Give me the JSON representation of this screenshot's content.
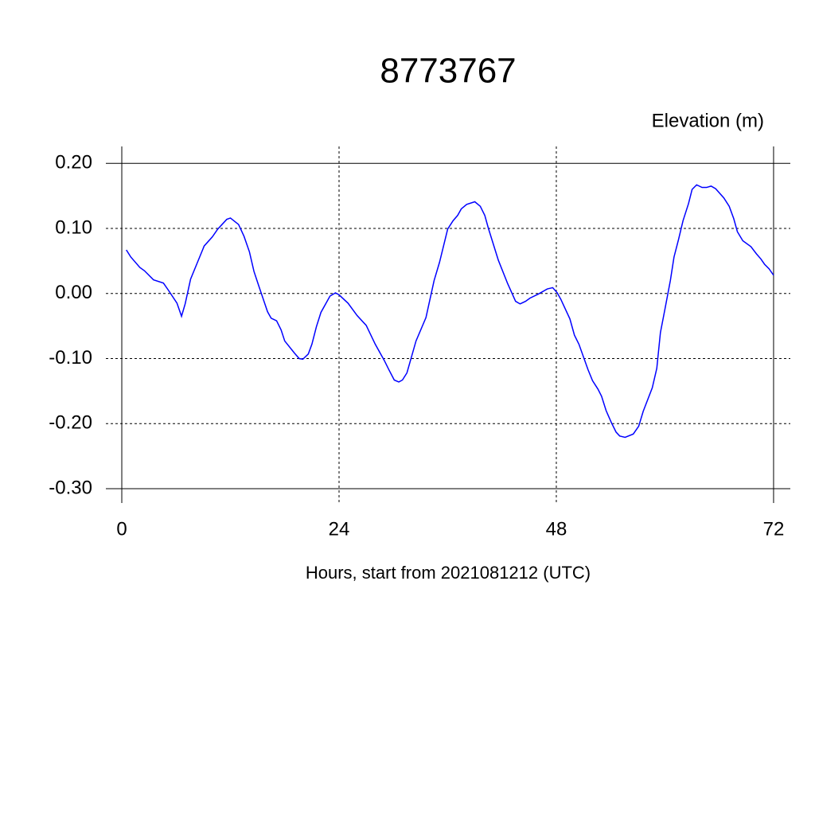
{
  "chart_data": {
    "type": "line",
    "title": "8773767",
    "y_label": "Elevation (m)",
    "x_label": "Hours, start from 2021081212 (UTC)",
    "series": [
      {
        "name": "Elevation",
        "color": "#0000ff",
        "x": [
          0.5,
          1.0,
          2.0,
          2.5,
          3.5,
          4.6,
          5.2,
          6.1,
          6.6,
          7.0,
          7.6,
          9.1,
          10.0,
          10.6,
          11.6,
          12.0,
          12.9,
          13.5,
          14.1,
          14.6,
          15.1,
          16.1,
          16.5,
          17.1,
          17.6,
          18.0,
          19.1,
          19.6,
          20.0,
          20.6,
          21.0,
          21.5,
          22.0,
          23.0,
          23.6,
          24.0,
          25.0,
          26.0,
          27.0,
          28.0,
          29.0,
          29.5,
          30.1,
          30.6,
          31.0,
          31.5,
          32.5,
          33.6,
          34.5,
          35.1,
          36.0,
          36.6,
          37.1,
          37.5,
          38.1,
          39.0,
          39.6,
          40.1,
          40.5,
          41.6,
          42.6,
          43.5,
          44.0,
          44.6,
          45.1,
          46.0,
          47.0,
          47.6,
          48.1,
          48.5,
          49.5,
          50.0,
          50.5,
          51.5,
          52.0,
          52.6,
          53.0,
          53.5,
          54.1,
          54.6,
          55.0,
          55.6,
          56.5,
          57.1,
          57.6,
          58.6,
          59.1,
          59.5,
          60.0,
          60.6,
          61.0,
          61.5,
          62.0,
          62.6,
          63.0,
          63.5,
          64.1,
          64.6,
          65.1,
          65.6,
          66.5,
          67.1,
          67.6,
          68.0,
          68.6,
          69.5,
          70.1,
          70.6,
          71.0,
          71.5,
          72.0
        ],
        "values": [
          0.067,
          0.056,
          0.04,
          0.035,
          0.021,
          0.016,
          0.004,
          -0.015,
          -0.035,
          -0.016,
          0.022,
          0.073,
          0.087,
          0.099,
          0.114,
          0.116,
          0.106,
          0.088,
          0.064,
          0.034,
          0.013,
          -0.028,
          -0.038,
          -0.042,
          -0.056,
          -0.073,
          -0.092,
          -0.1,
          -0.101,
          -0.093,
          -0.078,
          -0.051,
          -0.029,
          -0.004,
          0.001,
          -0.002,
          -0.015,
          -0.034,
          -0.049,
          -0.078,
          -0.103,
          -0.117,
          -0.133,
          -0.136,
          -0.133,
          -0.122,
          -0.073,
          -0.037,
          0.02,
          0.048,
          0.099,
          0.112,
          0.12,
          0.13,
          0.137,
          0.141,
          0.134,
          0.12,
          0.1,
          0.051,
          0.016,
          -0.012,
          -0.016,
          -0.012,
          -0.007,
          -0.001,
          0.007,
          0.009,
          0.001,
          -0.009,
          -0.039,
          -0.064,
          -0.078,
          -0.117,
          -0.134,
          -0.147,
          -0.158,
          -0.18,
          -0.199,
          -0.213,
          -0.219,
          -0.221,
          -0.216,
          -0.204,
          -0.181,
          -0.145,
          -0.115,
          -0.06,
          -0.024,
          0.02,
          0.056,
          0.083,
          0.112,
          0.138,
          0.16,
          0.167,
          0.163,
          0.163,
          0.165,
          0.161,
          0.147,
          0.134,
          0.115,
          0.095,
          0.081,
          0.072,
          0.061,
          0.053,
          0.045,
          0.038,
          0.028
        ]
      }
    ],
    "xlim": [
      -1.76,
      73.85
    ],
    "xticks": [
      0,
      24,
      48,
      72
    ],
    "ylim": [
      -0.322,
      0.226
    ],
    "yticks": [
      {
        "value": -0.3,
        "label": "-0.30"
      },
      {
        "value": -0.2,
        "label": "-0.20"
      },
      {
        "value": -0.1,
        "label": "-0.10"
      },
      {
        "value": 0,
        "label": "0.00"
      },
      {
        "value": 0.1,
        "label": "0.10"
      },
      {
        "value": 0.2,
        "label": "0.20"
      }
    ],
    "grid": true
  }
}
